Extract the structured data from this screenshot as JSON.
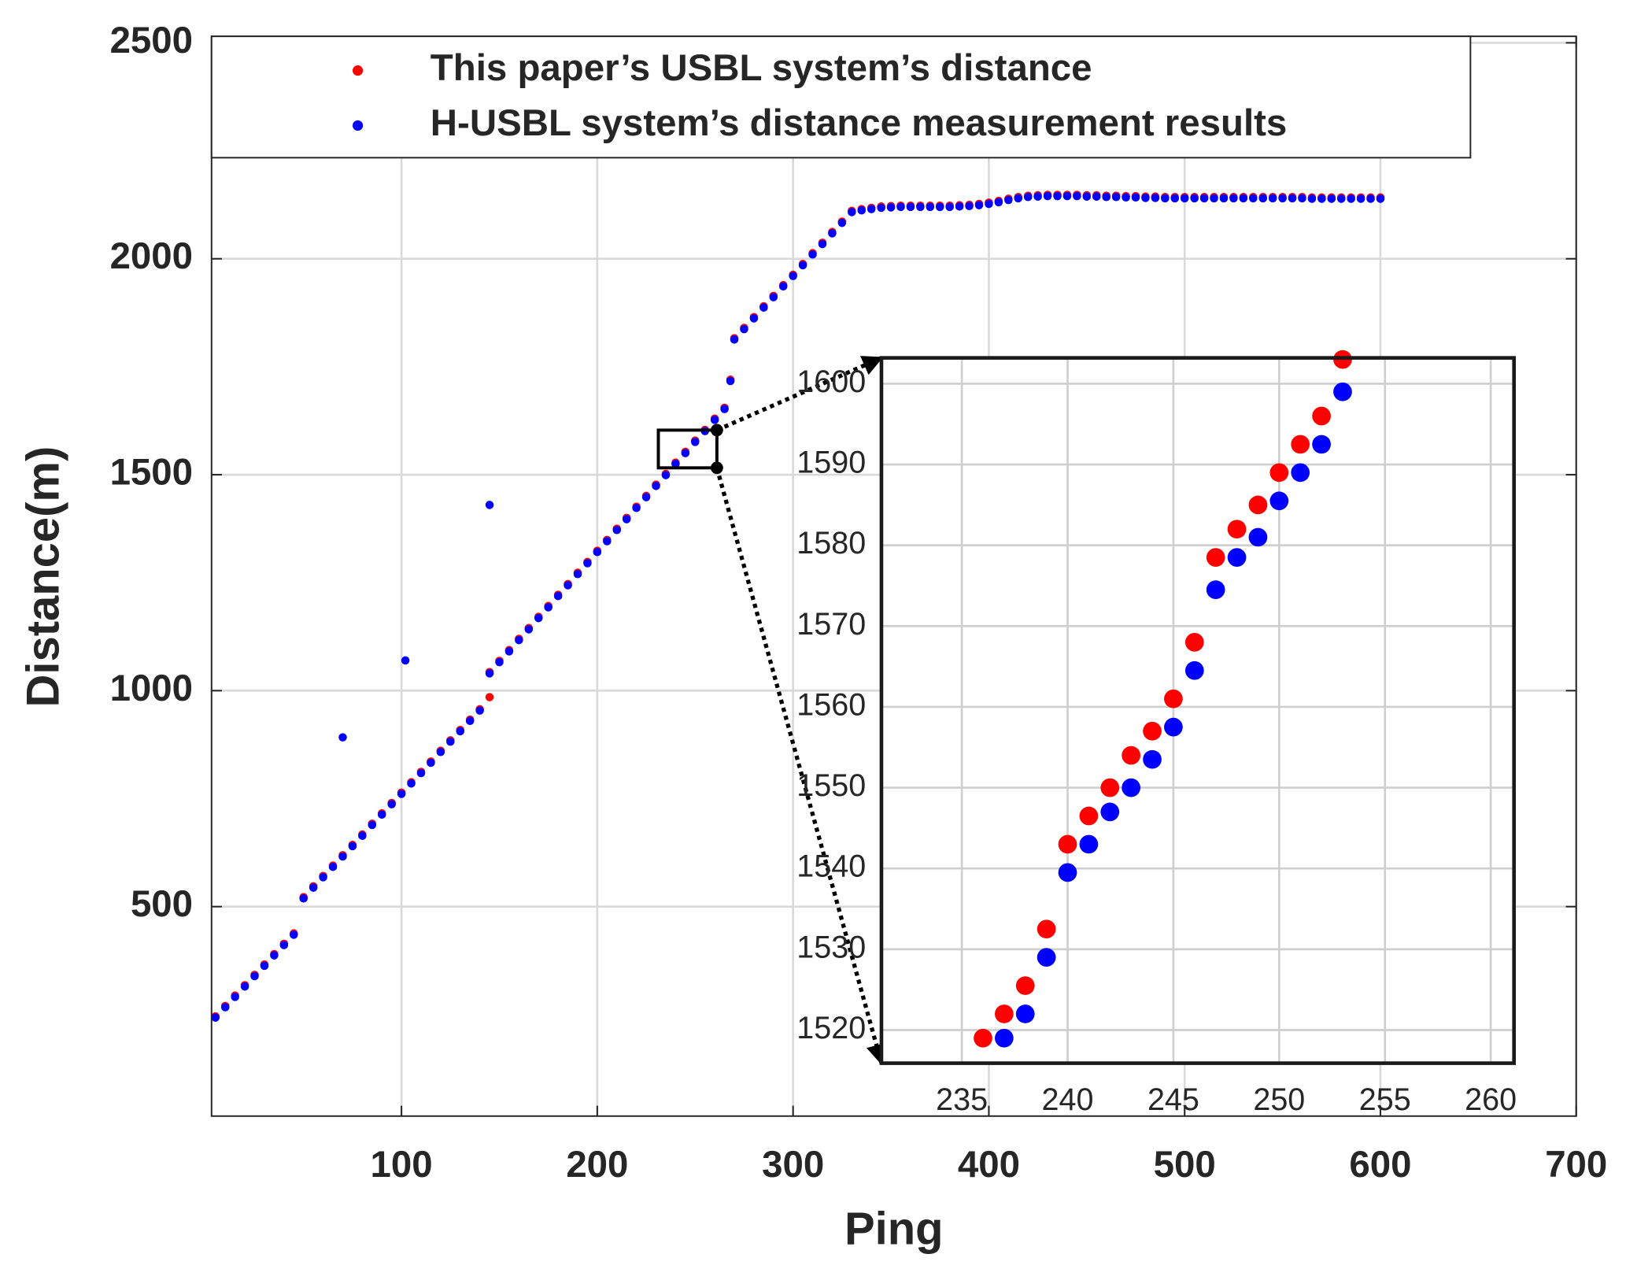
{
  "chart_data": [
    {
      "type": "scatter",
      "xlabel": "Ping",
      "ylabel": "Distance(m)",
      "xlim": [
        3,
        700
      ],
      "ylim": [
        15,
        2515
      ],
      "xticks": [
        100,
        200,
        300,
        400,
        500,
        600,
        700
      ],
      "yticks": [
        500,
        1000,
        1500,
        2000,
        2500
      ],
      "grid": true,
      "legend": "top",
      "series": [
        {
          "name": "This paper’s USBL system’s distance",
          "color": "#ff0000",
          "x": [
            5,
            10,
            15,
            20,
            25,
            30,
            35,
            40,
            45,
            50,
            55,
            60,
            65,
            70,
            75,
            80,
            85,
            90,
            95,
            100,
            105,
            110,
            115,
            120,
            125,
            130,
            135,
            140,
            145,
            150,
            155,
            160,
            165,
            170,
            175,
            180,
            185,
            190,
            195,
            200,
            205,
            210,
            215,
            220,
            225,
            230,
            235,
            240,
            245,
            250,
            255,
            260,
            265,
            270,
            275,
            280,
            285,
            290,
            295,
            300,
            305,
            310,
            315,
            320,
            325,
            330,
            335,
            340,
            345,
            350,
            355,
            360,
            365,
            370,
            375,
            380,
            385,
            390,
            395,
            400,
            405,
            410,
            415,
            420,
            425,
            430,
            435,
            440,
            445,
            450,
            455,
            460,
            465,
            470,
            475,
            480,
            485,
            490,
            495,
            500,
            505,
            510,
            515,
            520,
            525,
            530,
            535,
            540,
            545,
            550,
            555,
            560,
            565,
            570,
            575,
            580,
            585,
            590,
            595,
            600,
            145,
            268
          ],
          "values": [
            246,
            270,
            294,
            318,
            342,
            366,
            390,
            414,
            438,
            522,
            547,
            571,
            595,
            619,
            643,
            667,
            692,
            716,
            740,
            764,
            788,
            812,
            836,
            861,
            885,
            909,
            933,
            957,
            1043,
            1069,
            1094,
            1120,
            1145,
            1171,
            1196,
            1222,
            1247,
            1273,
            1298,
            1324,
            1349,
            1375,
            1400,
            1426,
            1451,
            1477,
            1502,
            1528,
            1553,
            1579,
            1604,
            1630,
            1655,
            1816,
            1840,
            1865,
            1890,
            1914,
            1939,
            1963,
            1988,
            2013,
            2037,
            2062,
            2086,
            2111,
            2115,
            2118,
            2121,
            2122,
            2123,
            2123,
            2123,
            2123,
            2123,
            2123,
            2124,
            2125,
            2127,
            2130,
            2134,
            2139,
            2143,
            2146,
            2147,
            2148,
            2148,
            2148,
            2148,
            2147,
            2147,
            2146,
            2146,
            2145,
            2145,
            2144,
            2144,
            2143,
            2143,
            2143,
            2143,
            2143,
            2143,
            2143,
            2143,
            2143,
            2143,
            2143,
            2143,
            2143,
            2143,
            2143,
            2142,
            2142,
            2142,
            2142,
            2142,
            2142,
            2142,
            2142,
            985,
            1720
          ]
        },
        {
          "name": "H-USBL system’s distance measurement results",
          "color": "#0000ff",
          "x": [
            5,
            10,
            15,
            20,
            25,
            30,
            35,
            40,
            45,
            50,
            55,
            60,
            65,
            70,
            75,
            80,
            85,
            90,
            95,
            100,
            105,
            110,
            115,
            120,
            125,
            130,
            135,
            140,
            145,
            150,
            155,
            160,
            165,
            170,
            175,
            180,
            185,
            190,
            195,
            200,
            205,
            210,
            215,
            220,
            225,
            230,
            235,
            240,
            245,
            250,
            255,
            260,
            265,
            270,
            275,
            280,
            285,
            290,
            295,
            300,
            305,
            310,
            315,
            320,
            325,
            330,
            335,
            340,
            345,
            350,
            355,
            360,
            365,
            370,
            375,
            380,
            385,
            390,
            395,
            400,
            405,
            410,
            415,
            420,
            425,
            430,
            435,
            440,
            445,
            450,
            455,
            460,
            465,
            470,
            475,
            480,
            485,
            490,
            495,
            500,
            505,
            510,
            515,
            520,
            525,
            530,
            535,
            540,
            545,
            550,
            555,
            560,
            565,
            570,
            575,
            580,
            585,
            590,
            595,
            600,
            70,
            102,
            145,
            268
          ],
          "values": [
            243,
            267,
            291,
            315,
            339,
            363,
            387,
            411,
            435,
            519,
            544,
            568,
            592,
            616,
            640,
            664,
            689,
            713,
            737,
            761,
            785,
            809,
            833,
            858,
            882,
            906,
            930,
            954,
            1040,
            1066,
            1091,
            1117,
            1142,
            1168,
            1193,
            1219,
            1244,
            1270,
            1295,
            1321,
            1346,
            1372,
            1397,
            1423,
            1448,
            1474,
            1499,
            1525,
            1550,
            1576,
            1601,
            1627,
            1652,
            1813,
            1837,
            1862,
            1887,
            1911,
            1936,
            1960,
            1985,
            2010,
            2034,
            2059,
            2083,
            2108,
            2112,
            2115,
            2118,
            2119,
            2120,
            2120,
            2120,
            2120,
            2120,
            2120,
            2121,
            2122,
            2124,
            2127,
            2131,
            2136,
            2140,
            2143,
            2144,
            2145,
            2145,
            2145,
            2145,
            2144,
            2144,
            2143,
            2143,
            2142,
            2142,
            2141,
            2141,
            2140,
            2140,
            2140,
            2140,
            2140,
            2140,
            2140,
            2140,
            2140,
            2140,
            2140,
            2140,
            2140,
            2140,
            2140,
            2139,
            2139,
            2139,
            2139,
            2139,
            2139,
            2139,
            2139,
            892,
            1070,
            1430,
            1717
          ]
        }
      ]
    },
    {
      "type": "scatter",
      "xlim": [
        231.2,
        261.1
      ],
      "ylim": [
        1515.9,
        1603.2
      ],
      "xticks": [
        235,
        240,
        245,
        250,
        255,
        260
      ],
      "yticks": [
        1520,
        1530,
        1540,
        1550,
        1560,
        1570,
        1580,
        1590,
        1600
      ],
      "grid": true,
      "series": [
        {
          "color": "#ff0000",
          "x": [
            236,
            237,
            238,
            239,
            240,
            241,
            242,
            243,
            244,
            245,
            246,
            247,
            248,
            249,
            250,
            251,
            252,
            253
          ],
          "values": [
            1519,
            1522,
            1525.5,
            1532.5,
            1543,
            1546.5,
            1550,
            1554,
            1557,
            1561,
            1568,
            1578.5,
            1582,
            1585,
            1589,
            1592.5,
            1596,
            1603
          ]
        },
        {
          "color": "#0000ff",
          "x": [
            237,
            238,
            239,
            240,
            241,
            242,
            243,
            244,
            245,
            246,
            247,
            248,
            249,
            250,
            251,
            252,
            253
          ],
          "values": [
            1519,
            1522,
            1529,
            1539.5,
            1543,
            1547,
            1550,
            1553.5,
            1557.5,
            1564.5,
            1574.5,
            1578.5,
            1581,
            1585.5,
            1589,
            1592.5,
            1599
          ]
        }
      ]
    }
  ]
}
